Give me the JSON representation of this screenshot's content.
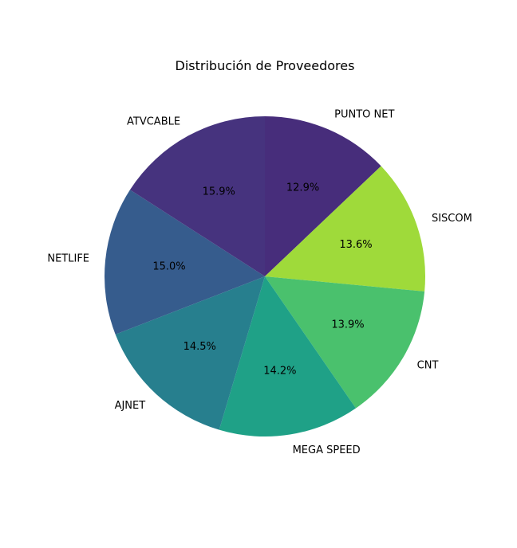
{
  "chart_data": {
    "type": "pie",
    "title": "Distribución de Proveedores",
    "start_angle_deg": 90,
    "direction": "clockwise",
    "labels": [
      "PUNTO NET",
      "SISCOM",
      "CNT",
      "MEGA SPEED",
      "AJNET",
      "NETLIFE",
      "ATVCABLE"
    ],
    "values": [
      12.9,
      13.6,
      13.9,
      14.2,
      14.5,
      15.0,
      15.9
    ],
    "value_labels": [
      "12.9%",
      "13.6%",
      "13.9%",
      "14.2%",
      "14.5%",
      "15.0%",
      "15.9%"
    ],
    "colors": [
      "#472d7b",
      "#9fda3a",
      "#4ac16d",
      "#1fa187",
      "#277f8e",
      "#365c8d",
      "#46337e"
    ],
    "legend": "none"
  }
}
